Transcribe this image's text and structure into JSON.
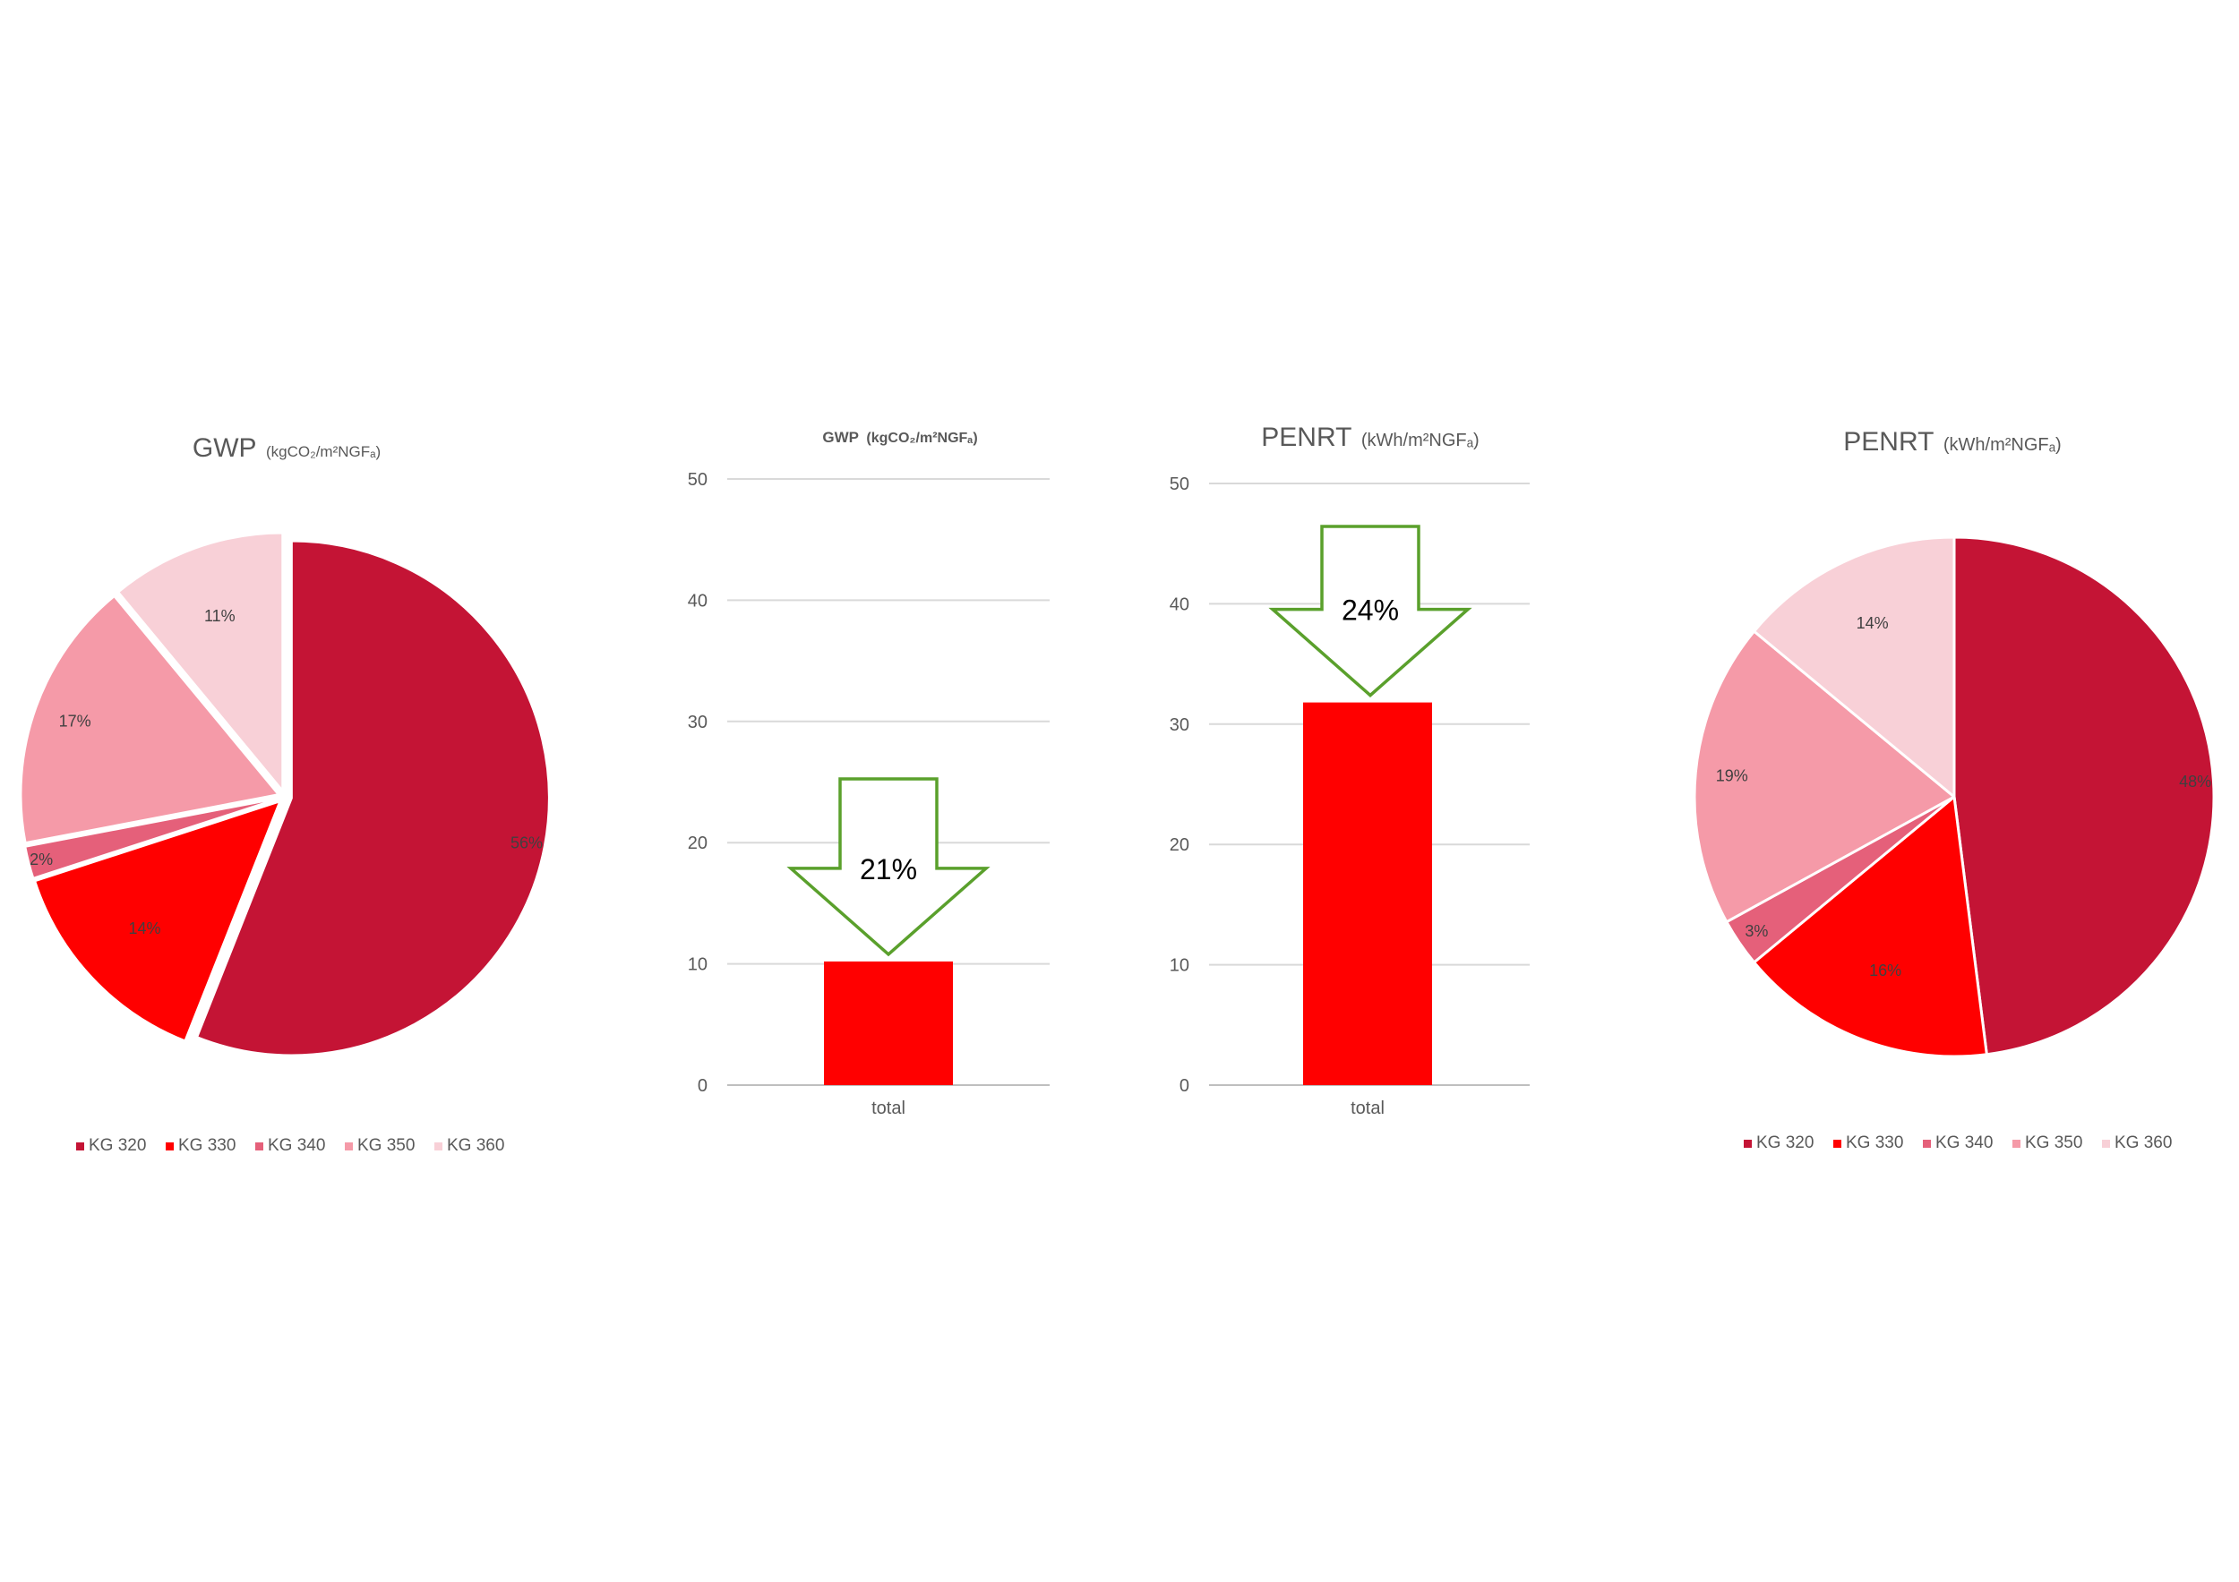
{
  "chart_data": [
    {
      "type": "pie",
      "title": "GWP",
      "unit": "(kgCO₂/m²NGFₐ)",
      "categories": [
        "KG 320",
        "KG 330",
        "KG 340",
        "KG 350",
        "KG 360"
      ],
      "values": [
        56,
        14,
        2,
        17,
        11
      ],
      "labels": [
        "56%",
        "14%",
        "2%",
        "17%",
        "11%"
      ],
      "exploded": true,
      "legend_position": "bottom"
    },
    {
      "type": "bar",
      "title": "GWP",
      "unit": "(kgCO₂/m²NGFₐ)",
      "categories": [
        "total"
      ],
      "values": [
        10.2
      ],
      "ylim": [
        0,
        50
      ],
      "yticks": [
        "0",
        "10",
        "20",
        "30",
        "40",
        "50"
      ],
      "grid": true,
      "annotation": "21%"
    },
    {
      "type": "bar",
      "title": "PENRT",
      "unit": "(kWh/m²NGFₐ)",
      "categories": [
        "total"
      ],
      "values": [
        31.8
      ],
      "ylim": [
        0,
        50
      ],
      "yticks": [
        "0",
        "10",
        "20",
        "30",
        "40",
        "50"
      ],
      "grid": true,
      "annotation": "24%"
    },
    {
      "type": "pie",
      "title": "PENRT",
      "unit": "(kWh/m²NGFₐ)",
      "categories": [
        "KG 320",
        "KG 330",
        "KG 340",
        "KG 350",
        "KG 360"
      ],
      "values": [
        48,
        16,
        3,
        19,
        14
      ],
      "labels": [
        "48%",
        "16%",
        "3%",
        "19%",
        "14%"
      ],
      "exploded": false,
      "legend_position": "bottom"
    }
  ],
  "colors": {
    "slices": [
      "#c41435",
      "#ff0000",
      "#e5607a",
      "#f59aa8",
      "#f8d0d7"
    ],
    "bar": "#ff0000",
    "arrow": "#5aa02c",
    "grid": "#d9d9d9",
    "axis": "#bfbfbf"
  }
}
